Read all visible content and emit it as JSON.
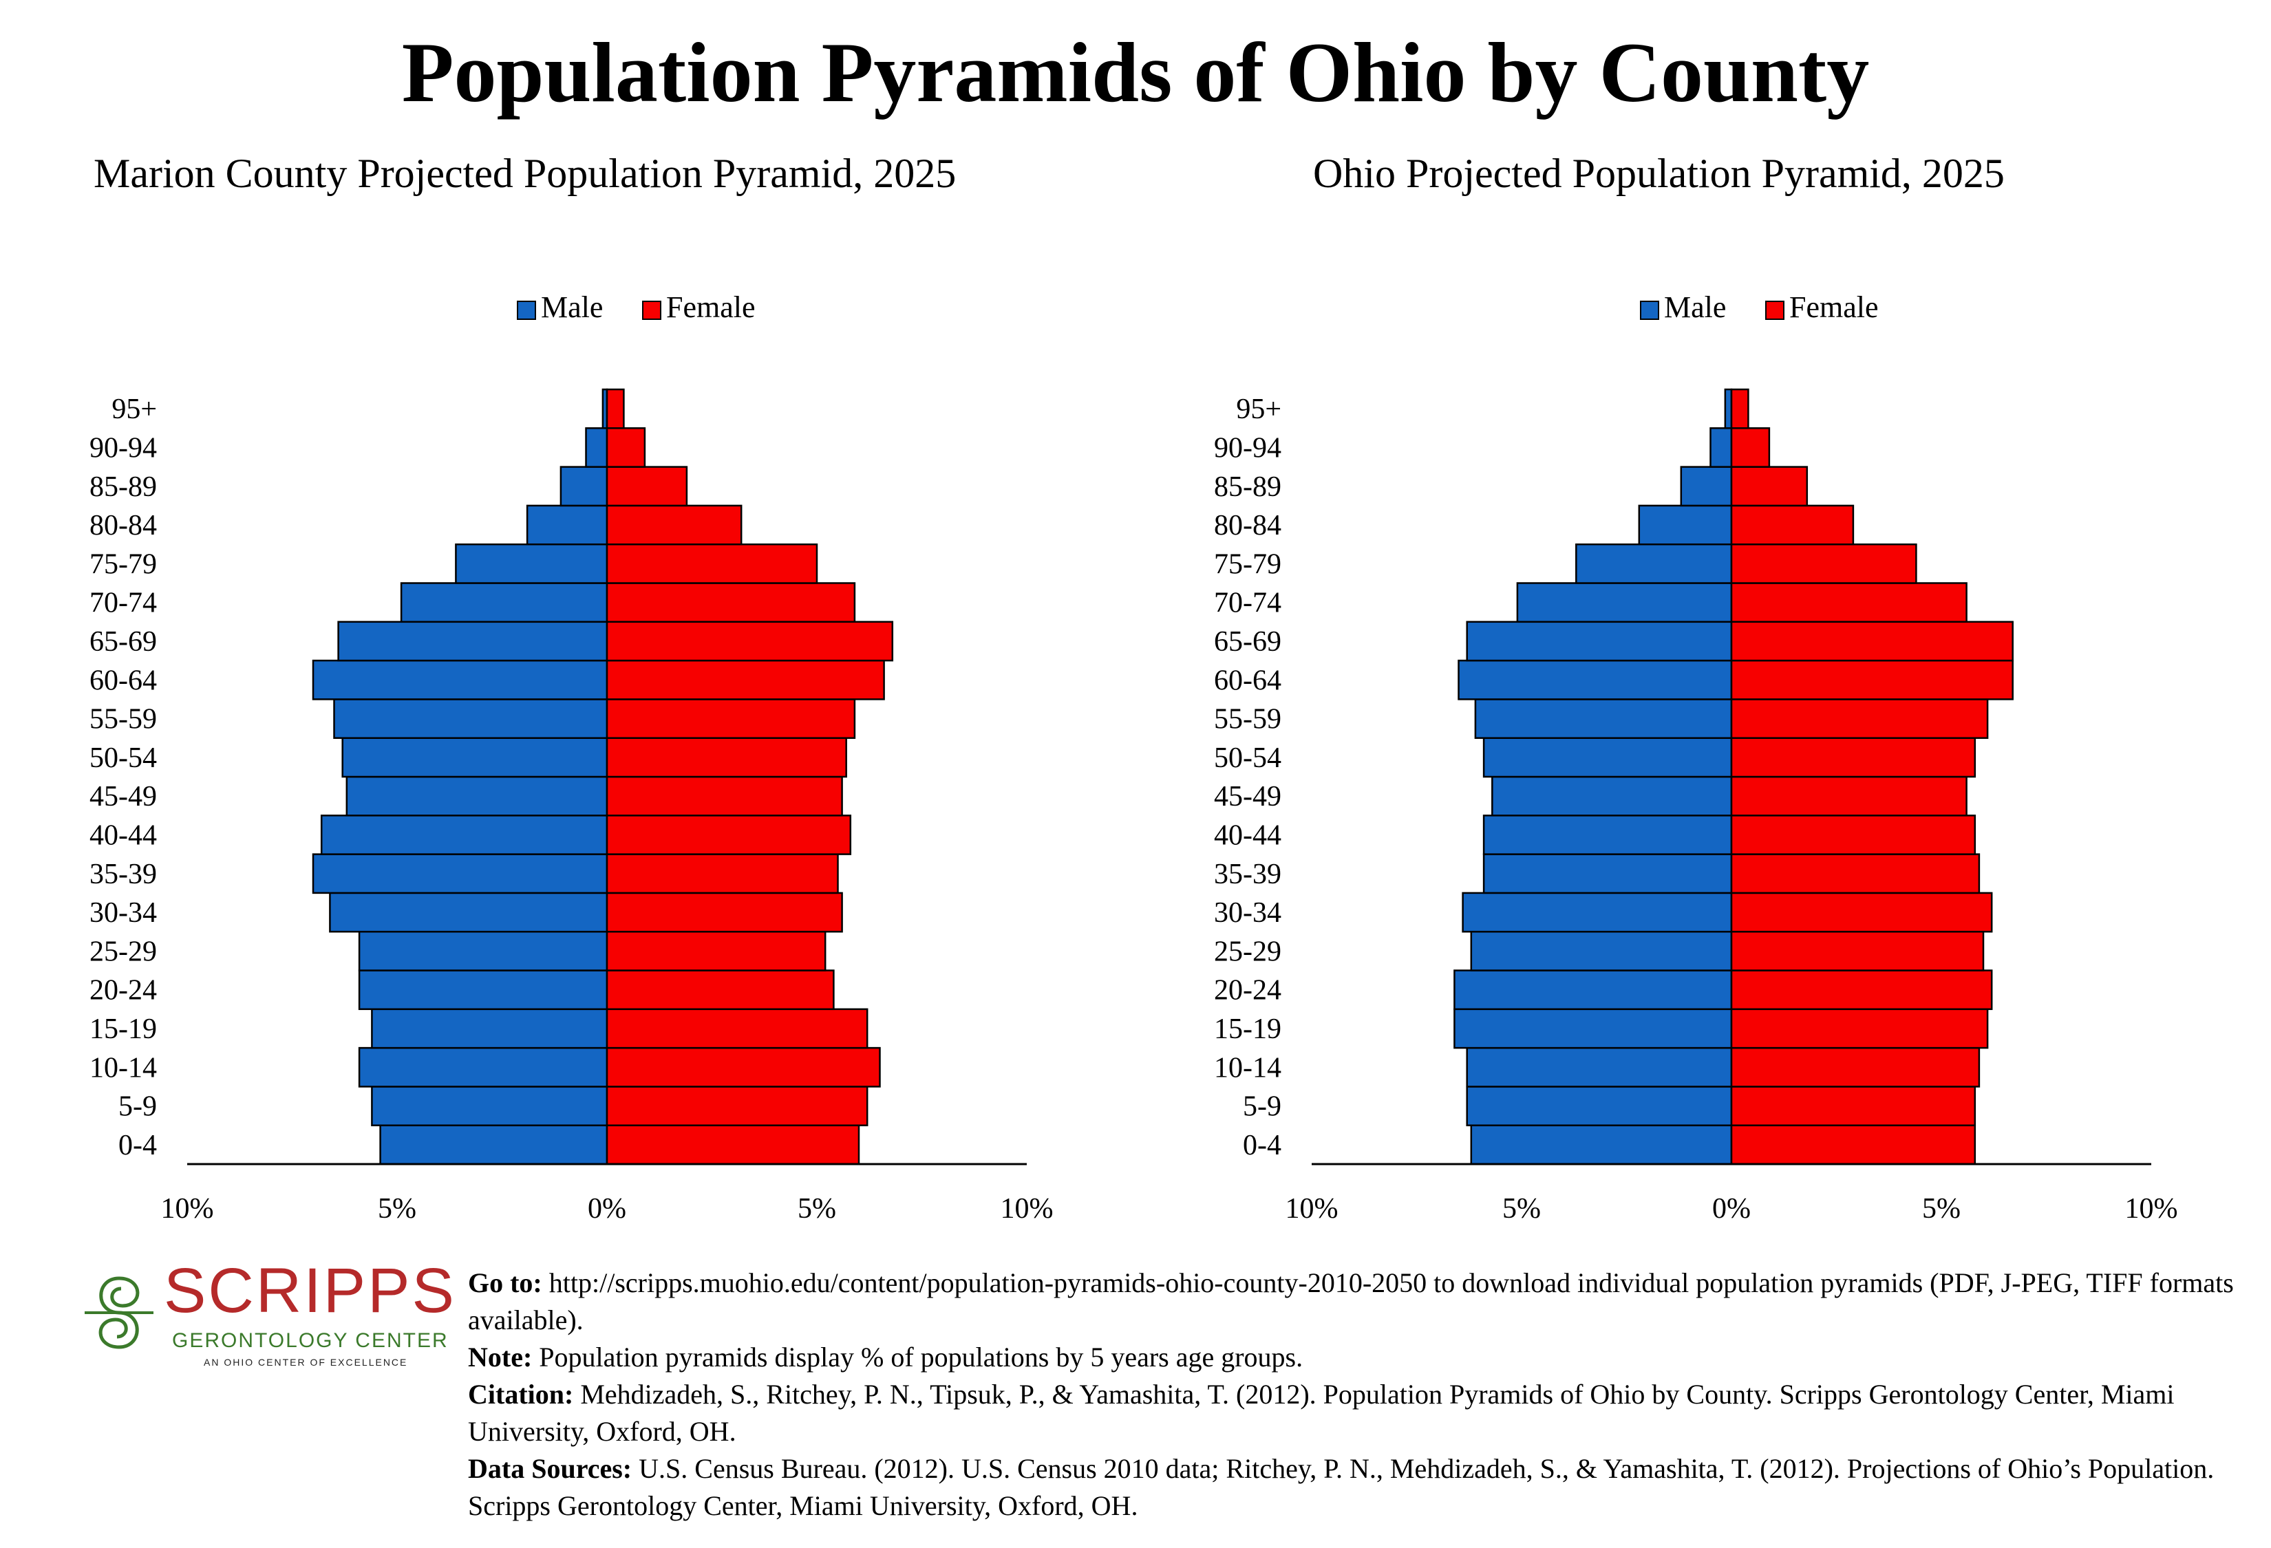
{
  "title": "Population Pyramids of Ohio by County",
  "colors": {
    "male": "#1466c3",
    "female": "#f70000",
    "outline": "#000000"
  },
  "chart_data": [
    {
      "type": "bar",
      "title": "Marion County Projected Population Pyramid, 2025",
      "legend": [
        "Male",
        "Female"
      ],
      "legend_position": "top-center",
      "categories": [
        "0-4",
        "5-9",
        "10-14",
        "15-19",
        "20-24",
        "25-29",
        "30-34",
        "35-39",
        "40-44",
        "45-49",
        "50-54",
        "55-59",
        "60-64",
        "65-69",
        "70-74",
        "75-79",
        "80-84",
        "85-89",
        "90-94",
        "95+"
      ],
      "series": [
        {
          "name": "Male",
          "values": [
            5.4,
            5.6,
            5.9,
            5.6,
            5.9,
            5.9,
            6.6,
            7.0,
            6.8,
            6.2,
            6.3,
            6.5,
            7.0,
            6.4,
            4.9,
            3.6,
            1.9,
            1.1,
            0.5,
            0.1
          ]
        },
        {
          "name": "Female",
          "values": [
            6.0,
            6.2,
            6.5,
            6.2,
            5.4,
            5.2,
            5.6,
            5.5,
            5.8,
            5.6,
            5.7,
            5.9,
            6.6,
            6.8,
            5.9,
            5.0,
            3.2,
            1.9,
            0.9,
            0.4
          ]
        }
      ],
      "xlim": [
        -10,
        10
      ],
      "xticks": [
        "10%",
        "5%",
        "0%",
        "5%",
        "10%"
      ]
    },
    {
      "type": "bar",
      "title": "Ohio Projected Population Pyramid, 2025",
      "legend": [
        "Male",
        "Female"
      ],
      "legend_position": "top-center",
      "categories": [
        "0-4",
        "5-9",
        "10-14",
        "15-19",
        "20-24",
        "25-29",
        "30-34",
        "35-39",
        "40-44",
        "45-49",
        "50-54",
        "55-59",
        "60-64",
        "65-69",
        "70-74",
        "75-79",
        "80-84",
        "85-89",
        "90-94",
        "95+"
      ],
      "series": [
        {
          "name": "Male",
          "values": [
            6.2,
            6.3,
            6.3,
            6.6,
            6.6,
            6.2,
            6.4,
            5.9,
            5.9,
            5.7,
            5.9,
            6.1,
            6.5,
            6.3,
            5.1,
            3.7,
            2.2,
            1.2,
            0.5,
            0.15
          ]
        },
        {
          "name": "Female",
          "values": [
            5.8,
            5.8,
            5.9,
            6.1,
            6.2,
            6.0,
            6.2,
            5.9,
            5.8,
            5.6,
            5.8,
            6.1,
            6.7,
            6.7,
            5.6,
            4.4,
            2.9,
            1.8,
            0.9,
            0.4
          ]
        }
      ],
      "xlim": [
        -10,
        10
      ],
      "xticks": [
        "10%",
        "5%",
        "0%",
        "5%",
        "10%"
      ]
    }
  ],
  "footer": {
    "goto_label": "Go to:",
    "goto_text": "http://scripps.muohio.edu/content/population-pyramids-ohio-county-2010-2050 to download individual population pyramids (PDF, J-PEG, TIFF formats available).",
    "note_label": "Note:",
    "note_text": "Population pyramids display % of populations by 5 years age groups.",
    "citation_label": "Citation:",
    "citation_text": "Mehdizadeh, S., Ritchey, P. N., Tipsuk, P., & Yamashita, T. (2012). Population Pyramids of Ohio by County. Scripps Gerontology Center, Miami University, Oxford, OH.",
    "sources_label": "Data Sources:",
    "sources_text": "U.S. Census Bureau. (2012). U.S. Census 2010 data; Ritchey, P. N., Mehdizadeh, S., & Yamashita, T. (2012). Projections of Ohio’s Population. Scripps Gerontology Center, Miami University, Oxford, OH."
  },
  "logo": {
    "name": "SCRIPPS",
    "subtitle": "GERONTOLOGY CENTER",
    "tagline": "AN OHIO CENTER OF EXCELLENCE"
  }
}
